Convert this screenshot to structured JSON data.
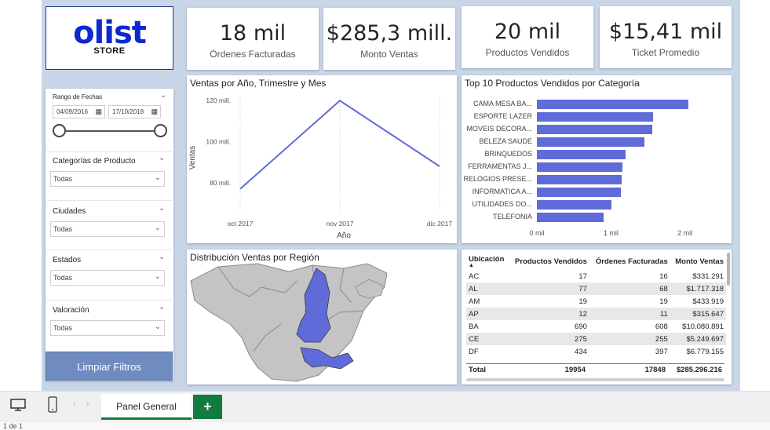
{
  "logo": {
    "word": "olist",
    "sub": "STORE"
  },
  "kpis": [
    {
      "value": "18 mil",
      "label": "Órdenes Facturadas"
    },
    {
      "value": "$285,3 mill.",
      "label": "Monto Ventas"
    },
    {
      "value": "20 mil",
      "label": "Productos Vendidos"
    },
    {
      "value": "$15,41 mil",
      "label": "Ticket Promedio"
    }
  ],
  "filters": {
    "date_range_label": "Rango de Fechas",
    "date_start": "04/09/2016",
    "date_end": "17/10/2018",
    "categories_label": "Categorías de Producto",
    "categories_value": "Todas",
    "cities_label": "Ciudades",
    "cities_value": "Todas",
    "states_label": "Estados",
    "states_value": "Todas",
    "rating_label": "Valoración",
    "rating_value": "Todas",
    "clear_button": "Limpiar Filtros"
  },
  "line_chart": {
    "title": "Ventas por Año, Trimestre y Mes",
    "xlabel": "Año",
    "ylabel": "Ventas",
    "y_ticks": [
      "120 mill.",
      "100 mill.",
      "80 mill."
    ],
    "x_ticks": [
      "oct 2017",
      "nov 2017",
      "dic 2017"
    ]
  },
  "bar_chart": {
    "title": "Top 10 Productos Vendidos por Categoría",
    "x_ticks": [
      "0 mil",
      "1 mil",
      "2 mil"
    ]
  },
  "map": {
    "title": "Distribución Ventas por Región"
  },
  "matrix": {
    "headers": [
      "Ubicación",
      "Productos Vendidos",
      "Órdenes Facturadas",
      "Monto Ventas"
    ],
    "rows": [
      [
        "AC",
        "17",
        "16",
        "$331.291"
      ],
      [
        "AL",
        "77",
        "68",
        "$1.717.318"
      ],
      [
        "AM",
        "19",
        "19",
        "$433.919"
      ],
      [
        "AP",
        "12",
        "11",
        "$315.647"
      ],
      [
        "BA",
        "690",
        "608",
        "$10.080.891"
      ],
      [
        "CE",
        "275",
        "255",
        "$5.249.697"
      ],
      [
        "DF",
        "434",
        "397",
        "$6.779.155"
      ]
    ],
    "total": [
      "Total",
      "19954",
      "17848",
      "$285.296.216"
    ]
  },
  "bottom": {
    "tab_label": "Panel General",
    "add_tab": "+",
    "page_indicator": "1 de 1"
  },
  "chart_data": [
    {
      "type": "line",
      "title": "Ventas por Año, Trimestre y Mes",
      "xlabel": "Año",
      "ylabel": "Ventas",
      "x": [
        "oct 2017",
        "nov 2017",
        "dic 2017"
      ],
      "series": [
        {
          "values": [
            77000000,
            120000000,
            88000000
          ]
        }
      ],
      "ylim": [
        75000000,
        122000000
      ]
    },
    {
      "type": "bar",
      "title": "Top 10 Productos Vendidos por Categoría",
      "categories": [
        "CAMA MESA BA...",
        "ESPORTE LAZER",
        "MOVEIS DECORA...",
        "BELEZA SAUDE",
        "BRINQUEDOS",
        "FERRAMENTAS J...",
        "RELOGIOS PRESE...",
        "INFORMATICA A...",
        "UTILIDADES DO...",
        "TELEFONIA"
      ],
      "values": [
        2050,
        1570,
        1560,
        1450,
        1200,
        1150,
        1140,
        1130,
        1010,
        900
      ],
      "xlim": [
        0,
        2300
      ]
    }
  ],
  "colors": {
    "accent": "#5f6bd8",
    "brand": "#0c29d0",
    "tab_green": "#107c41"
  }
}
